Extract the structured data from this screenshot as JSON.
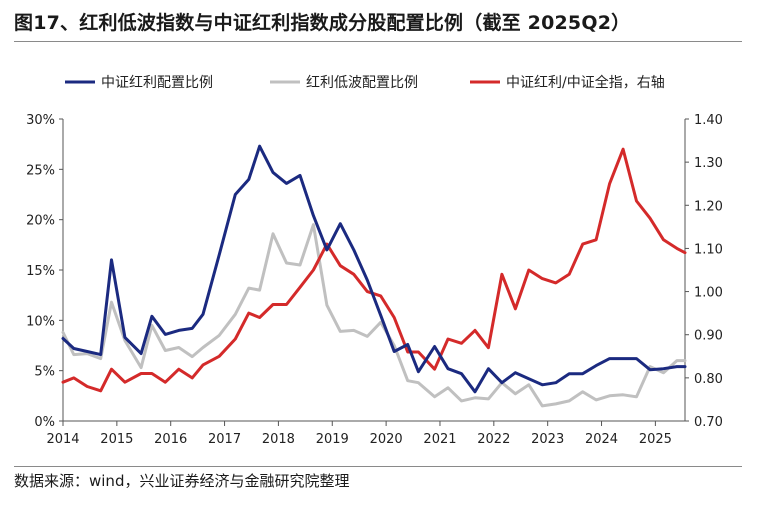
{
  "title": "图17、红利低波指数与中证红利指数成分股配置比例（截至 2025Q2）",
  "source": "数据来源：wind，兴业证券经济与金融研究院整理",
  "chart_data": {
    "type": "line",
    "x_ticks": [
      "2014",
      "2015",
      "2016",
      "2017",
      "2018",
      "2019",
      "2020",
      "2021",
      "2022",
      "2023",
      "2024",
      "2025"
    ],
    "xlim": [
      2014.0,
      2025.55
    ],
    "y_left": {
      "ticks": [
        "0%",
        "5%",
        "10%",
        "15%",
        "20%",
        "25%",
        "30%"
      ],
      "range": [
        0,
        30
      ]
    },
    "y_right": {
      "ticks": [
        "0.70",
        "0.80",
        "0.90",
        "1.00",
        "1.10",
        "1.20",
        "1.30",
        "1.40"
      ],
      "range": [
        0.7,
        1.4
      ]
    },
    "legend": [
      {
        "name": "中证红利配置比例",
        "color": "#1b2a80"
      },
      {
        "name": "红利低波配置比例",
        "color": "#c0c0c0"
      },
      {
        "name": "中证红利/中证全指，右轴",
        "color": "#d42a2a"
      }
    ],
    "series": [
      {
        "name": "中证红利配置比例",
        "axis": "left",
        "color": "#1b2a80",
        "x": [
          2014.0,
          2014.2,
          2014.45,
          2014.7,
          2014.9,
          2015.15,
          2015.45,
          2015.65,
          2015.9,
          2016.15,
          2016.4,
          2016.6,
          2016.9,
          2017.2,
          2017.45,
          2017.65,
          2017.9,
          2018.15,
          2018.4,
          2018.65,
          2018.9,
          2019.15,
          2019.4,
          2019.65,
          2019.9,
          2020.15,
          2020.4,
          2020.6,
          2020.9,
          2021.15,
          2021.4,
          2021.65,
          2021.9,
          2022.15,
          2022.4,
          2022.65,
          2022.9,
          2023.15,
          2023.4,
          2023.65,
          2023.9,
          2024.15,
          2024.4,
          2024.65,
          2024.9,
          2025.15,
          2025.4,
          2025.55
        ],
        "values": [
          8.2,
          7.2,
          6.9,
          6.6,
          16.0,
          8.3,
          6.7,
          10.4,
          8.6,
          9.0,
          9.2,
          10.6,
          16.5,
          22.5,
          24.0,
          27.3,
          24.7,
          23.6,
          24.4,
          20.4,
          17.0,
          19.6,
          17.0,
          14.0,
          10.5,
          6.9,
          7.6,
          4.9,
          7.4,
          5.2,
          4.7,
          2.9,
          5.2,
          3.8,
          4.8,
          4.2,
          3.6,
          3.8,
          4.7,
          4.7,
          5.5,
          6.2,
          6.2,
          6.2,
          5.1,
          5.2,
          5.4,
          5.4
        ]
      },
      {
        "name": "红利低波配置比例",
        "axis": "left",
        "color": "#c0c0c0",
        "x": [
          2014.0,
          2014.2,
          2014.45,
          2014.7,
          2014.9,
          2015.15,
          2015.45,
          2015.65,
          2015.9,
          2016.15,
          2016.4,
          2016.6,
          2016.9,
          2017.2,
          2017.45,
          2017.65,
          2017.9,
          2018.15,
          2018.4,
          2018.65,
          2018.9,
          2019.15,
          2019.4,
          2019.65,
          2019.9,
          2020.15,
          2020.4,
          2020.6,
          2020.9,
          2021.15,
          2021.4,
          2021.65,
          2021.9,
          2022.15,
          2022.4,
          2022.65,
          2022.9,
          2023.15,
          2023.4,
          2023.65,
          2023.9,
          2024.15,
          2024.4,
          2024.65,
          2024.9,
          2025.15,
          2025.4,
          2025.55
        ],
        "values": [
          8.8,
          6.6,
          6.7,
          6.2,
          11.8,
          8.0,
          5.3,
          9.5,
          7.0,
          7.3,
          6.4,
          7.3,
          8.5,
          10.6,
          13.2,
          13.0,
          18.6,
          15.7,
          15.5,
          19.5,
          11.5,
          8.9,
          9.0,
          8.4,
          9.8,
          7.5,
          4.0,
          3.8,
          2.4,
          3.3,
          2.0,
          2.3,
          2.2,
          3.8,
          2.7,
          3.6,
          1.5,
          1.7,
          2.0,
          2.9,
          2.1,
          2.5,
          2.6,
          2.4,
          5.4,
          4.8,
          6.0,
          6.0
        ]
      },
      {
        "name": "中证红利/中证全指，右轴",
        "axis": "right",
        "color": "#d42a2a",
        "x": [
          2014.0,
          2014.2,
          2014.45,
          2014.7,
          2014.9,
          2015.15,
          2015.45,
          2015.65,
          2015.9,
          2016.15,
          2016.4,
          2016.6,
          2016.9,
          2017.2,
          2017.45,
          2017.65,
          2017.9,
          2018.15,
          2018.4,
          2018.65,
          2018.9,
          2019.15,
          2019.4,
          2019.65,
          2019.9,
          2020.15,
          2020.4,
          2020.6,
          2020.9,
          2021.15,
          2021.4,
          2021.65,
          2021.9,
          2022.15,
          2022.4,
          2022.65,
          2022.9,
          2023.15,
          2023.4,
          2023.65,
          2023.9,
          2024.15,
          2024.4,
          2024.65,
          2024.9,
          2025.15,
          2025.4,
          2025.55
        ],
        "values": [
          0.79,
          0.8,
          0.78,
          0.77,
          0.82,
          0.79,
          0.81,
          0.81,
          0.79,
          0.82,
          0.8,
          0.83,
          0.85,
          0.89,
          0.95,
          0.94,
          0.97,
          0.97,
          1.01,
          1.05,
          1.11,
          1.06,
          1.04,
          1.0,
          0.99,
          0.94,
          0.86,
          0.86,
          0.82,
          0.89,
          0.88,
          0.91,
          0.87,
          1.04,
          0.96,
          1.05,
          1.03,
          1.02,
          1.04,
          1.11,
          1.12,
          1.25,
          1.33,
          1.21,
          1.17,
          1.12,
          1.1,
          1.09
        ]
      }
    ]
  }
}
